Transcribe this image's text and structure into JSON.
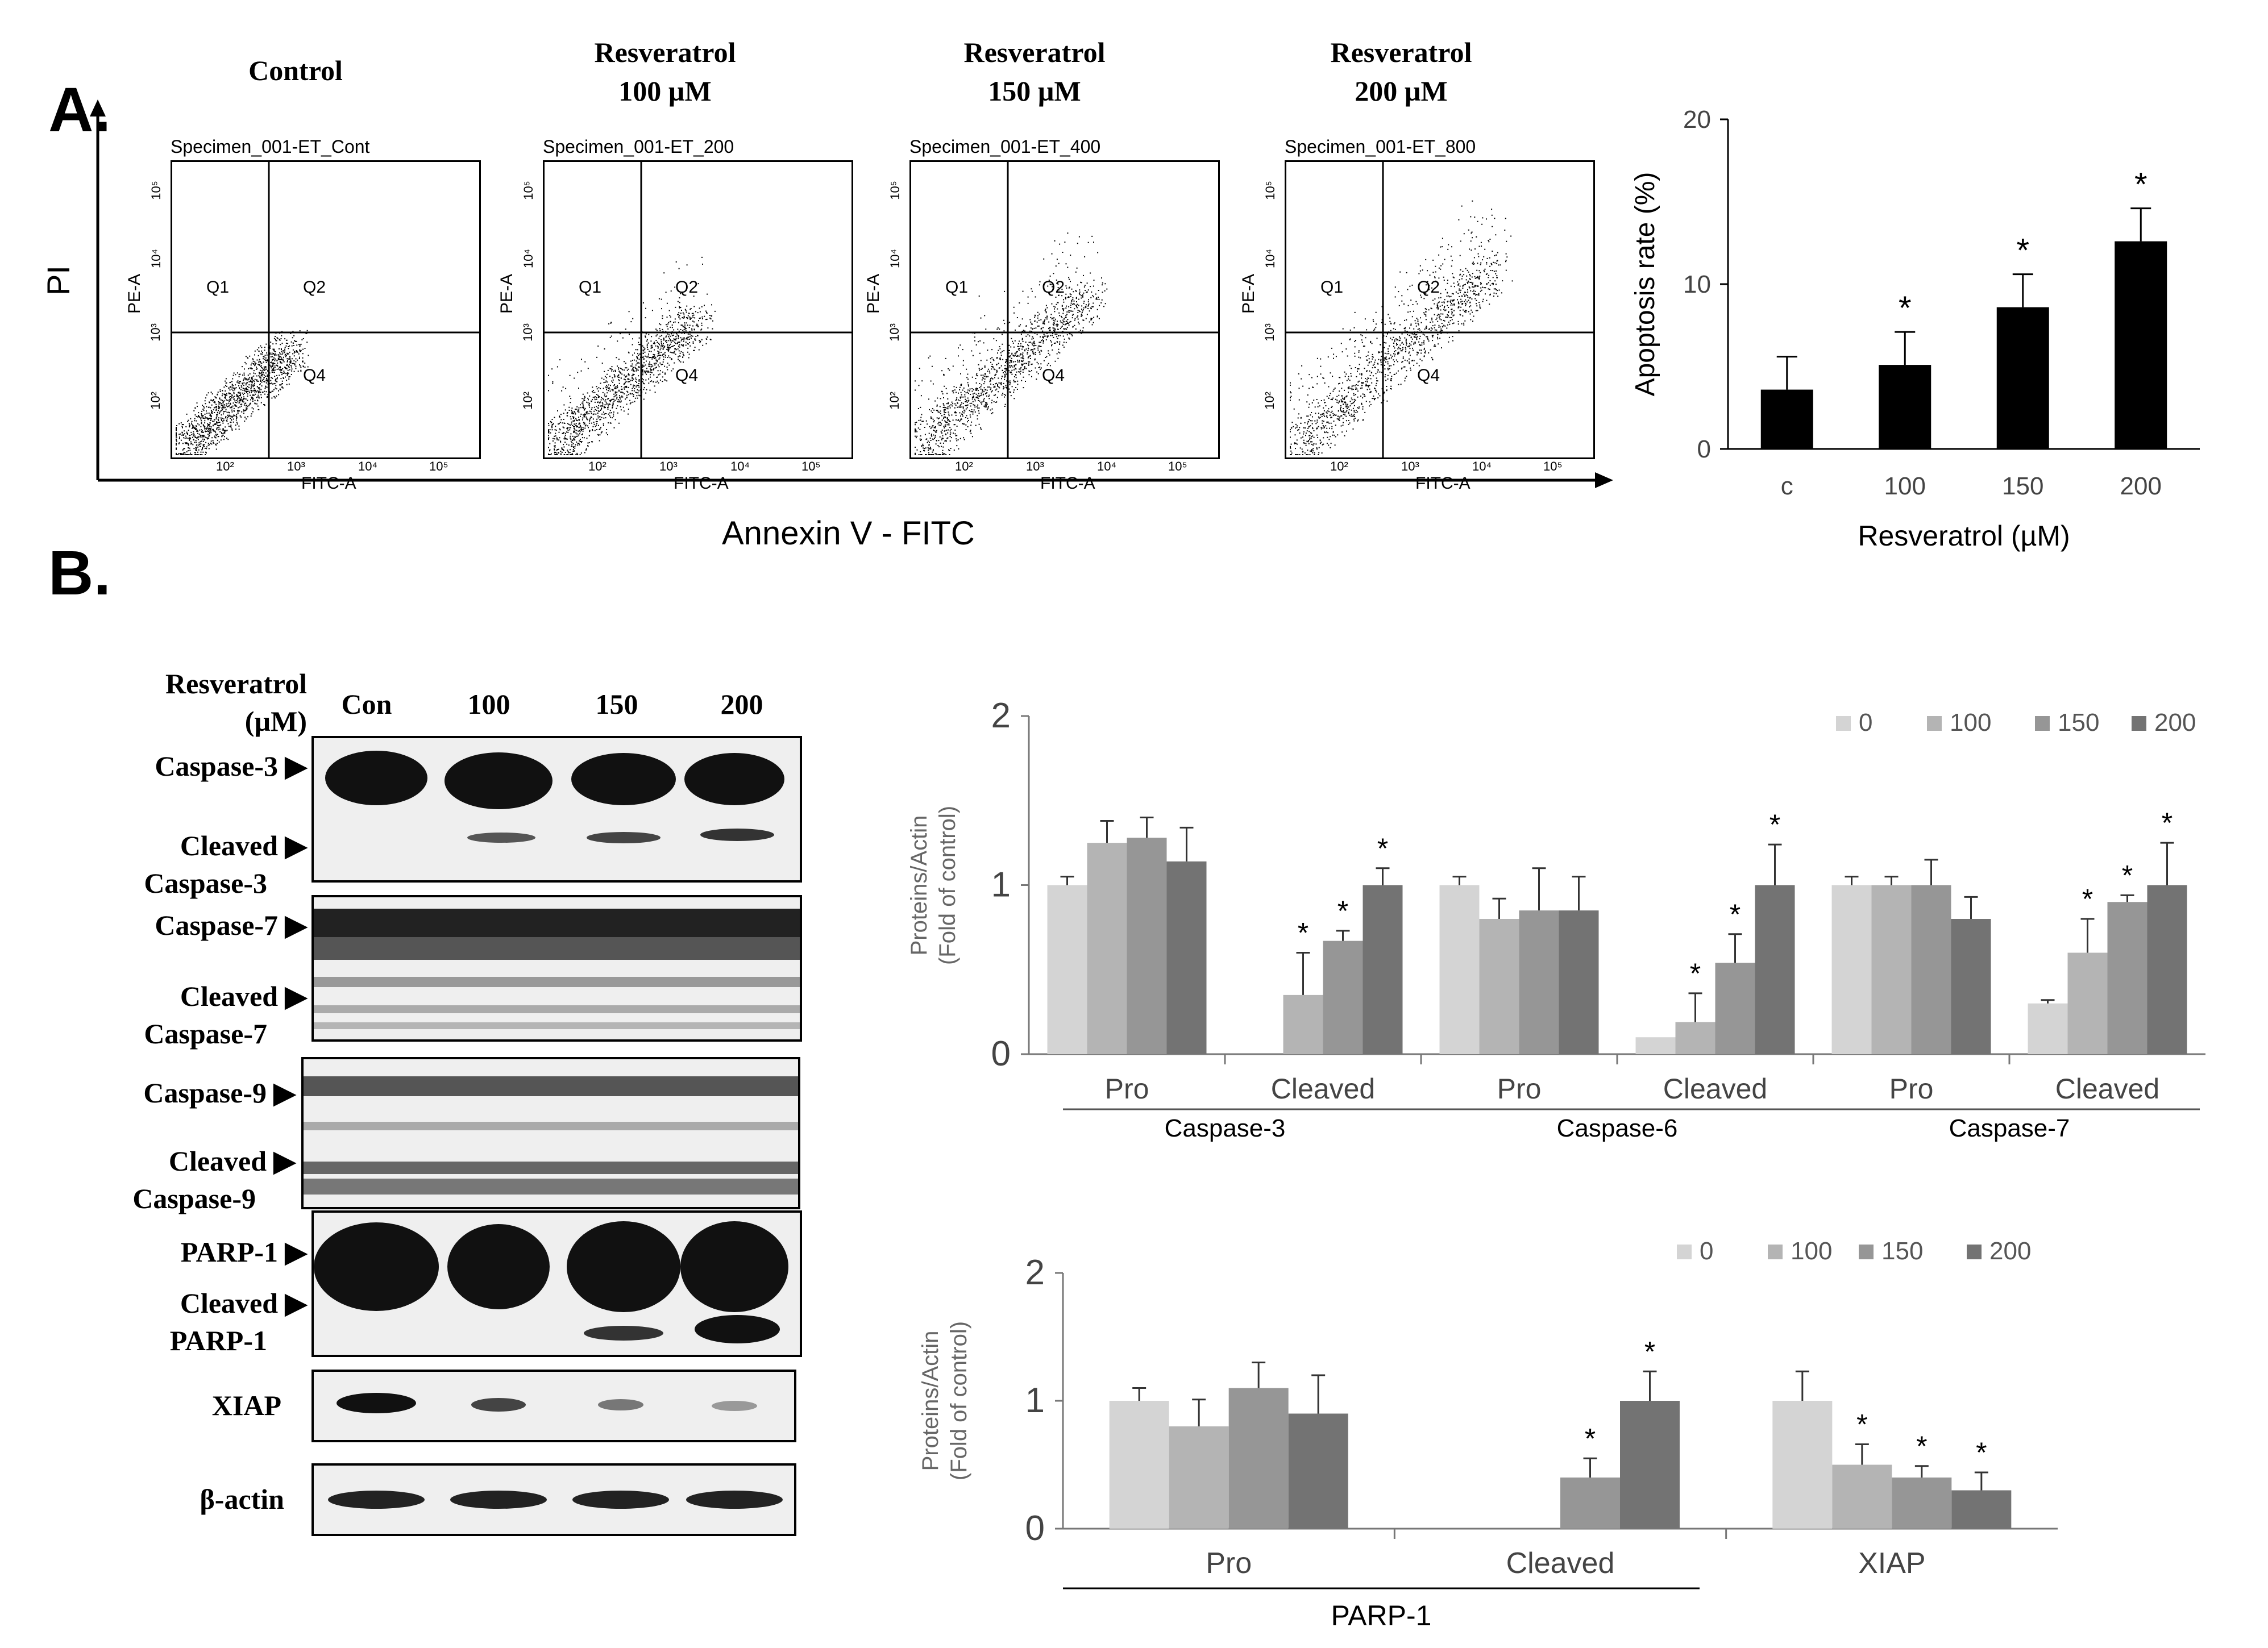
{
  "panel_a": {
    "letter": "A.",
    "conditions": [
      {
        "title_line1": "Control",
        "title_line2": "",
        "specimen": "Specimen_001-ET_Cont"
      },
      {
        "title_line1": "Resveratrol",
        "title_line2": "100 µM",
        "specimen": "Specimen_001-ET_200"
      },
      {
        "title_line1": "Resveratrol",
        "title_line2": "150 µM",
        "specimen": "Specimen_001-ET_400"
      },
      {
        "title_line1": "Resveratrol",
        "title_line2": "200 µM",
        "specimen": "Specimen_001-ET_800"
      }
    ],
    "flow_axis": {
      "y_outer": "PI",
      "x_outer": "Annexin V - FITC",
      "y_inner": "PE-A",
      "x_inner": "FITC-A"
    },
    "quadrants": [
      "Q1",
      "Q2",
      "Q4"
    ],
    "flow_ticks": {
      "y": [
        "10⁵",
        "10⁴",
        "10³",
        "10²"
      ],
      "x": [
        "10²",
        "10³",
        "10⁴",
        "10⁵"
      ]
    }
  },
  "panel_b": {
    "letter": "B.",
    "header_line1": "Resveratrol",
    "header_line2": "(µM)",
    "lanes": [
      "Con",
      "100",
      "150",
      "200"
    ],
    "blots": [
      {
        "label1": "Caspase-3",
        "label2": "Cleaved",
        "label3": "Caspase-3"
      },
      {
        "label1": "Caspase-7",
        "label2": "Cleaved",
        "label3": "Caspase-7"
      },
      {
        "label1": "Caspase-9",
        "label2": "Cleaved",
        "label3": "Caspase-9"
      },
      {
        "label1": "PARP-1",
        "label2": "Cleaved",
        "label3": "PARP-1"
      },
      {
        "label1": "XIAP"
      },
      {
        "label1": "β-actin"
      }
    ],
    "arrow": "▶"
  },
  "chart_data": [
    {
      "type": "bar",
      "title": "",
      "xlabel": "Resveratrol (µM)",
      "ylabel": "Apoptosis rate (%)",
      "categories": [
        "c",
        "100",
        "150",
        "200"
      ],
      "values": [
        3.6,
        5.1,
        8.6,
        12.6
      ],
      "errors": [
        2.0,
        2.0,
        2.0,
        2.0
      ],
      "significance": [
        "",
        "*",
        "*",
        "*"
      ],
      "ylim": [
        0,
        20
      ],
      "yticks": [
        0,
        10,
        20
      ],
      "color": "#000000"
    },
    {
      "type": "bar",
      "title": "",
      "xlabel": "",
      "ylabel": "Proteins/Actin (Fold of control)",
      "categories": [
        "Pro",
        "Cleaved",
        "Pro",
        "Cleaved",
        "Pro",
        "Cleaved"
      ],
      "groups": [
        "Caspase-3",
        "Caspase-6",
        "Caspase-7"
      ],
      "legend": [
        "0",
        "100",
        "150",
        "200"
      ],
      "colors": [
        "#d4d4d4",
        "#b4b4b4",
        "#969696",
        "#737373"
      ],
      "series": [
        {
          "name": "0",
          "values": [
            1.0,
            0,
            1.0,
            0.1,
            1.0,
            0.3
          ],
          "errors": [
            0.05,
            0,
            0.05,
            0,
            0.05,
            0.02
          ],
          "significance": [
            "",
            "",
            "",
            "",
            "",
            ""
          ]
        },
        {
          "name": "100",
          "values": [
            1.25,
            0.35,
            0.8,
            0.19,
            1.0,
            0.6
          ],
          "errors": [
            0.13,
            0.25,
            0.12,
            0.17,
            0.05,
            0.2
          ],
          "significance": [
            "",
            "*",
            "",
            "*",
            "",
            "*"
          ]
        },
        {
          "name": "150",
          "values": [
            1.28,
            0.67,
            0.85,
            0.54,
            1.0,
            0.9
          ],
          "errors": [
            0.12,
            0.06,
            0.25,
            0.17,
            0.15,
            0.04
          ],
          "significance": [
            "",
            "*",
            "",
            "*",
            "",
            "*"
          ]
        },
        {
          "name": "200",
          "values": [
            1.14,
            1.0,
            0.85,
            1.0,
            0.8,
            1.0
          ],
          "errors": [
            0.2,
            0.1,
            0.2,
            0.24,
            0.13,
            0.25
          ],
          "significance": [
            "",
            "*",
            "",
            "*",
            "",
            "*"
          ]
        }
      ],
      "ylim": [
        0,
        2
      ],
      "yticks": [
        0,
        1,
        2
      ]
    },
    {
      "type": "bar",
      "title": "",
      "xlabel": "",
      "ylabel": "Proteins/Actin (Fold of control)",
      "categories": [
        "Pro",
        "Cleaved",
        "XIAP"
      ],
      "groups": [
        "PARP-1"
      ],
      "legend": [
        "0",
        "100",
        "150",
        "200"
      ],
      "colors": [
        "#d4d4d4",
        "#b4b4b4",
        "#969696",
        "#737373"
      ],
      "series": [
        {
          "name": "0",
          "values": [
            1.0,
            0,
            1.0
          ],
          "errors": [
            0.1,
            0,
            0.23
          ],
          "significance": [
            "",
            "",
            ""
          ]
        },
        {
          "name": "100",
          "values": [
            0.8,
            0,
            0.5
          ],
          "errors": [
            0.21,
            0,
            0.16
          ],
          "significance": [
            "",
            "",
            "*"
          ]
        },
        {
          "name": "150",
          "values": [
            1.1,
            0.4,
            0.4
          ],
          "errors": [
            0.2,
            0.15,
            0.09
          ],
          "significance": [
            "",
            "*",
            "*"
          ]
        },
        {
          "name": "200",
          "values": [
            0.9,
            1.0,
            0.3
          ],
          "errors": [
            0.3,
            0.23,
            0.14
          ],
          "significance": [
            "",
            "*",
            "*"
          ]
        }
      ],
      "ylim": [
        0,
        2
      ],
      "yticks": [
        0,
        1,
        2
      ]
    }
  ]
}
